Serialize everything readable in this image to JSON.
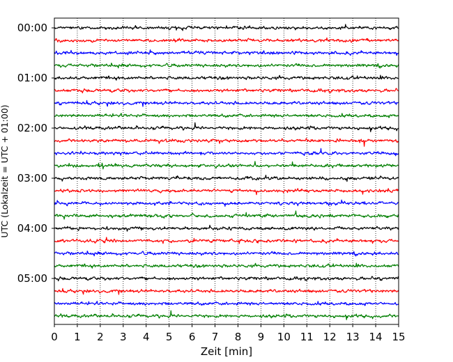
{
  "chart_data": {
    "type": "line",
    "title": "",
    "xlabel": "Zeit  [min]",
    "ylabel": "UTC (Lokalzeit = UTC + 01:00)",
    "xlim": [
      0,
      15
    ],
    "x_ticks": [
      0,
      1,
      2,
      3,
      4,
      5,
      6,
      7,
      8,
      9,
      10,
      11,
      12,
      13,
      14,
      15
    ],
    "x_tick_labels": [
      "0",
      "1",
      "2",
      "3",
      "4",
      "5",
      "6",
      "7",
      "8",
      "9",
      "10",
      "11",
      "12",
      "13",
      "14",
      "15"
    ],
    "y_tick_labels": [
      "00:00",
      "01:00",
      "02:00",
      "03:00",
      "04:00",
      "05:00"
    ],
    "rows_per_hour": 4,
    "row_count": 24,
    "row_colors": [
      "#000000",
      "#ff0000",
      "#0000ff",
      "#007f00"
    ],
    "vertical_grid": "dotted",
    "legend": "none"
  }
}
